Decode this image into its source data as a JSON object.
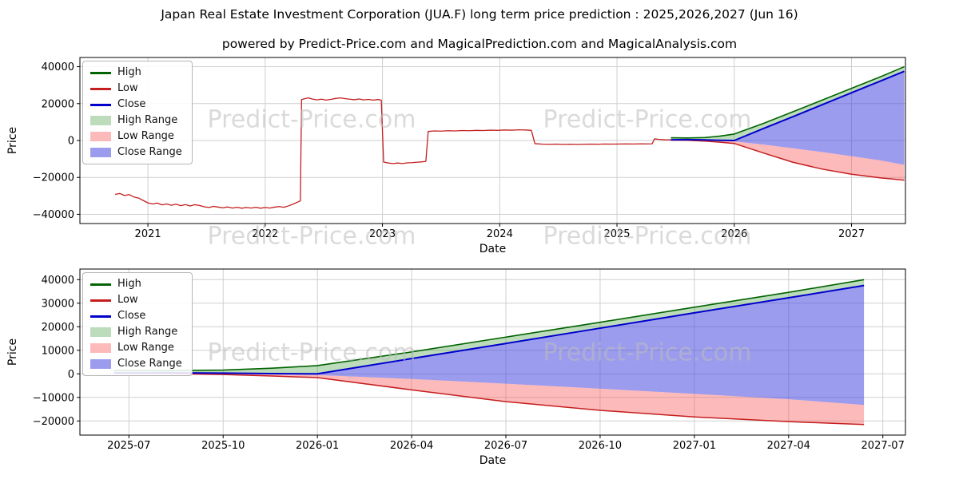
{
  "chart_data": {
    "type": "line",
    "title": "Japan Real Estate Investment Corporation (JUA.F) long term price prediction : 2025,2026,2027 (Jun 16)",
    "subtitle": "powered by Predict-Price.com and MagicalPrediction.com and MagicalAnalysis.com",
    "watermark": "Predict-Price.com",
    "xlabel": "Date",
    "ylabel": "Price",
    "colors": {
      "high": "#006400",
      "low": "#c41e1e",
      "close": "#0000cd",
      "high_range": "rgba(34,139,34,0.30)",
      "low_range": "rgba(250,90,90,0.42)",
      "close_range": "rgba(75,75,225,0.55)",
      "grid": "#cfcfcf",
      "axis": "#000000"
    },
    "legend": [
      {
        "label": "High",
        "kind": "line",
        "color_key": "high"
      },
      {
        "label": "Low",
        "kind": "line",
        "color_key": "low"
      },
      {
        "label": "Close",
        "kind": "line",
        "color_key": "close"
      },
      {
        "label": "High Range",
        "kind": "band",
        "color_key": "high_range"
      },
      {
        "label": "Low Range",
        "kind": "band",
        "color_key": "low_range"
      },
      {
        "label": "Close Range",
        "kind": "band",
        "color_key": "close_range"
      }
    ],
    "historical_low": [
      [
        2020.72,
        -29200
      ],
      [
        2020.76,
        -28700
      ],
      [
        2020.8,
        -29800
      ],
      [
        2020.84,
        -29300
      ],
      [
        2020.88,
        -30600
      ],
      [
        2020.92,
        -31200
      ],
      [
        2020.96,
        -32500
      ],
      [
        2021.0,
        -33800
      ],
      [
        2021.04,
        -34400
      ],
      [
        2021.08,
        -33900
      ],
      [
        2021.12,
        -34900
      ],
      [
        2021.16,
        -34400
      ],
      [
        2021.2,
        -35100
      ],
      [
        2021.24,
        -34500
      ],
      [
        2021.28,
        -35300
      ],
      [
        2021.32,
        -34700
      ],
      [
        2021.36,
        -35500
      ],
      [
        2021.4,
        -34800
      ],
      [
        2021.44,
        -35200
      ],
      [
        2021.48,
        -35900
      ],
      [
        2021.52,
        -36300
      ],
      [
        2021.56,
        -35700
      ],
      [
        2021.6,
        -36100
      ],
      [
        2021.64,
        -36500
      ],
      [
        2021.68,
        -36000
      ],
      [
        2021.72,
        -36600
      ],
      [
        2021.76,
        -36200
      ],
      [
        2021.8,
        -36700
      ],
      [
        2021.84,
        -36300
      ],
      [
        2021.88,
        -36600
      ],
      [
        2021.92,
        -36200
      ],
      [
        2021.96,
        -36700
      ],
      [
        2022.0,
        -36300
      ],
      [
        2022.04,
        -36600
      ],
      [
        2022.08,
        -36100
      ],
      [
        2022.12,
        -35800
      ],
      [
        2022.16,
        -36200
      ],
      [
        2022.2,
        -35400
      ],
      [
        2022.24,
        -34400
      ],
      [
        2022.28,
        -33300
      ],
      [
        2022.3,
        -32700
      ],
      [
        2022.31,
        22200
      ],
      [
        2022.34,
        22700
      ],
      [
        2022.37,
        23100
      ],
      [
        2022.4,
        22500
      ],
      [
        2022.44,
        22000
      ],
      [
        2022.48,
        22400
      ],
      [
        2022.52,
        21900
      ],
      [
        2022.56,
        22300
      ],
      [
        2022.6,
        22800
      ],
      [
        2022.64,
        23100
      ],
      [
        2022.68,
        22700
      ],
      [
        2022.72,
        22400
      ],
      [
        2022.76,
        22100
      ],
      [
        2022.8,
        22500
      ],
      [
        2022.84,
        22000
      ],
      [
        2022.88,
        22300
      ],
      [
        2022.92,
        21900
      ],
      [
        2022.96,
        22200
      ],
      [
        2022.99,
        21900
      ],
      [
        2023.01,
        -11700
      ],
      [
        2023.05,
        -12200
      ],
      [
        2023.09,
        -12500
      ],
      [
        2023.13,
        -12200
      ],
      [
        2023.17,
        -12500
      ],
      [
        2023.21,
        -12100
      ],
      [
        2023.25,
        -12000
      ],
      [
        2023.29,
        -11800
      ],
      [
        2023.33,
        -11600
      ],
      [
        2023.37,
        -11300
      ],
      [
        2023.39,
        4900
      ],
      [
        2023.44,
        5200
      ],
      [
        2023.5,
        5100
      ],
      [
        2023.56,
        5300
      ],
      [
        2023.62,
        5200
      ],
      [
        2023.68,
        5400
      ],
      [
        2023.74,
        5300
      ],
      [
        2023.8,
        5500
      ],
      [
        2023.86,
        5400
      ],
      [
        2023.92,
        5600
      ],
      [
        2023.98,
        5500
      ],
      [
        2024.04,
        5700
      ],
      [
        2024.1,
        5600
      ],
      [
        2024.16,
        5800
      ],
      [
        2024.22,
        5700
      ],
      [
        2024.27,
        5500
      ],
      [
        2024.3,
        -1700
      ],
      [
        2024.36,
        -1950
      ],
      [
        2024.42,
        -2050
      ],
      [
        2024.48,
        -1950
      ],
      [
        2024.54,
        -2100
      ],
      [
        2024.6,
        -2000
      ],
      [
        2024.66,
        -2100
      ],
      [
        2024.72,
        -2000
      ],
      [
        2024.78,
        -1950
      ],
      [
        2024.84,
        -2000
      ],
      [
        2024.9,
        -1900
      ],
      [
        2024.96,
        -1950
      ],
      [
        2025.02,
        -1900
      ],
      [
        2025.08,
        -1850
      ],
      [
        2025.14,
        -1900
      ],
      [
        2025.2,
        -1800
      ],
      [
        2025.26,
        -1850
      ],
      [
        2025.3,
        -1780
      ],
      [
        2025.32,
        900
      ],
      [
        2025.36,
        600
      ],
      [
        2025.41,
        400
      ],
      [
        2025.46,
        300
      ]
    ],
    "prediction": {
      "x": [
        2025.46,
        2025.6,
        2025.75,
        2025.88,
        2026.0,
        2026.25,
        2026.5,
        2026.75,
        2027.0,
        2027.25,
        2027.45
      ],
      "high": [
        1500,
        1400,
        1600,
        2400,
        3500,
        9300,
        15600,
        21900,
        28300,
        34600,
        40000
      ],
      "close": [
        400,
        500,
        300,
        100,
        0,
        6500,
        12900,
        19400,
        25900,
        32300,
        37500
      ],
      "close_lower": [
        300,
        300,
        0,
        -200,
        -500,
        -2200,
        -4200,
        -6300,
        -8500,
        -10800,
        -13200
      ],
      "low_lower": [
        200,
        100,
        -300,
        -900,
        -1600,
        -6800,
        -11800,
        -15500,
        -18300,
        -20300,
        -21500
      ]
    },
    "charts": [
      {
        "name": "full-history",
        "show_history": true,
        "xlim": [
          2020.42,
          2027.46
        ],
        "ylim": [
          -45000,
          45000
        ],
        "xticks": [
          {
            "v": 2021,
            "label": "2021"
          },
          {
            "v": 2022,
            "label": "2022"
          },
          {
            "v": 2023,
            "label": "2023"
          },
          {
            "v": 2024,
            "label": "2024"
          },
          {
            "v": 2025,
            "label": "2025"
          },
          {
            "v": 2026,
            "label": "2026"
          },
          {
            "v": 2027,
            "label": "2027"
          }
        ],
        "yticks": [
          {
            "v": -40000,
            "label": "−40000"
          },
          {
            "v": -20000,
            "label": "−20000"
          },
          {
            "v": 0,
            "label": "0"
          },
          {
            "v": 20000,
            "label": "20000"
          },
          {
            "v": 40000,
            "label": "40000"
          }
        ]
      },
      {
        "name": "prediction-detail",
        "show_history": false,
        "xlim": [
          2025.37,
          2027.56
        ],
        "ylim": [
          -26000,
          44500
        ],
        "xticks": [
          {
            "v": 2025.5,
            "label": "2025-07"
          },
          {
            "v": 2025.75,
            "label": "2025-10"
          },
          {
            "v": 2026.0,
            "label": "2026-01"
          },
          {
            "v": 2026.25,
            "label": "2026-04"
          },
          {
            "v": 2026.5,
            "label": "2026-07"
          },
          {
            "v": 2026.75,
            "label": "2026-10"
          },
          {
            "v": 2027.0,
            "label": "2027-01"
          },
          {
            "v": 2027.25,
            "label": "2027-04"
          },
          {
            "v": 2027.5,
            "label": "2027-07"
          }
        ],
        "yticks": [
          {
            "v": -20000,
            "label": "−20000"
          },
          {
            "v": -10000,
            "label": "−10000"
          },
          {
            "v": 0,
            "label": "0"
          },
          {
            "v": 10000,
            "label": "10000"
          },
          {
            "v": 20000,
            "label": "20000"
          },
          {
            "v": 30000,
            "label": "30000"
          },
          {
            "v": 40000,
            "label": "40000"
          }
        ]
      }
    ]
  }
}
